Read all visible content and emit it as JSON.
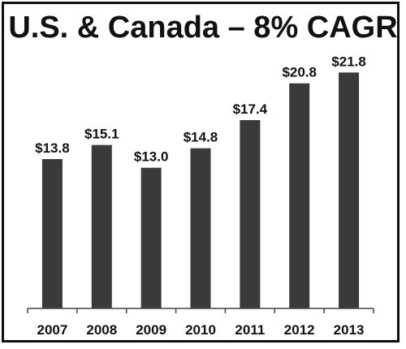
{
  "chart_data": {
    "type": "bar",
    "title": "U.S. & Canada – 8% CAGR",
    "categories": [
      "2007",
      "2008",
      "2009",
      "2010",
      "2011",
      "2012",
      "2013"
    ],
    "values": [
      13.8,
      15.1,
      13.0,
      14.8,
      17.4,
      20.8,
      21.8
    ],
    "data_labels": [
      "$13.8",
      "$15.1",
      "$13.0",
      "$14.8",
      "$17.4",
      "$20.8",
      "$21.8"
    ],
    "xlabel": "",
    "ylabel": "",
    "ylim": [
      0,
      24
    ],
    "grid": false,
    "legend": "none",
    "colors": {
      "bar": "#3a3a3a",
      "axis": "#444444",
      "text": "#111111",
      "border": "#111111"
    }
  }
}
